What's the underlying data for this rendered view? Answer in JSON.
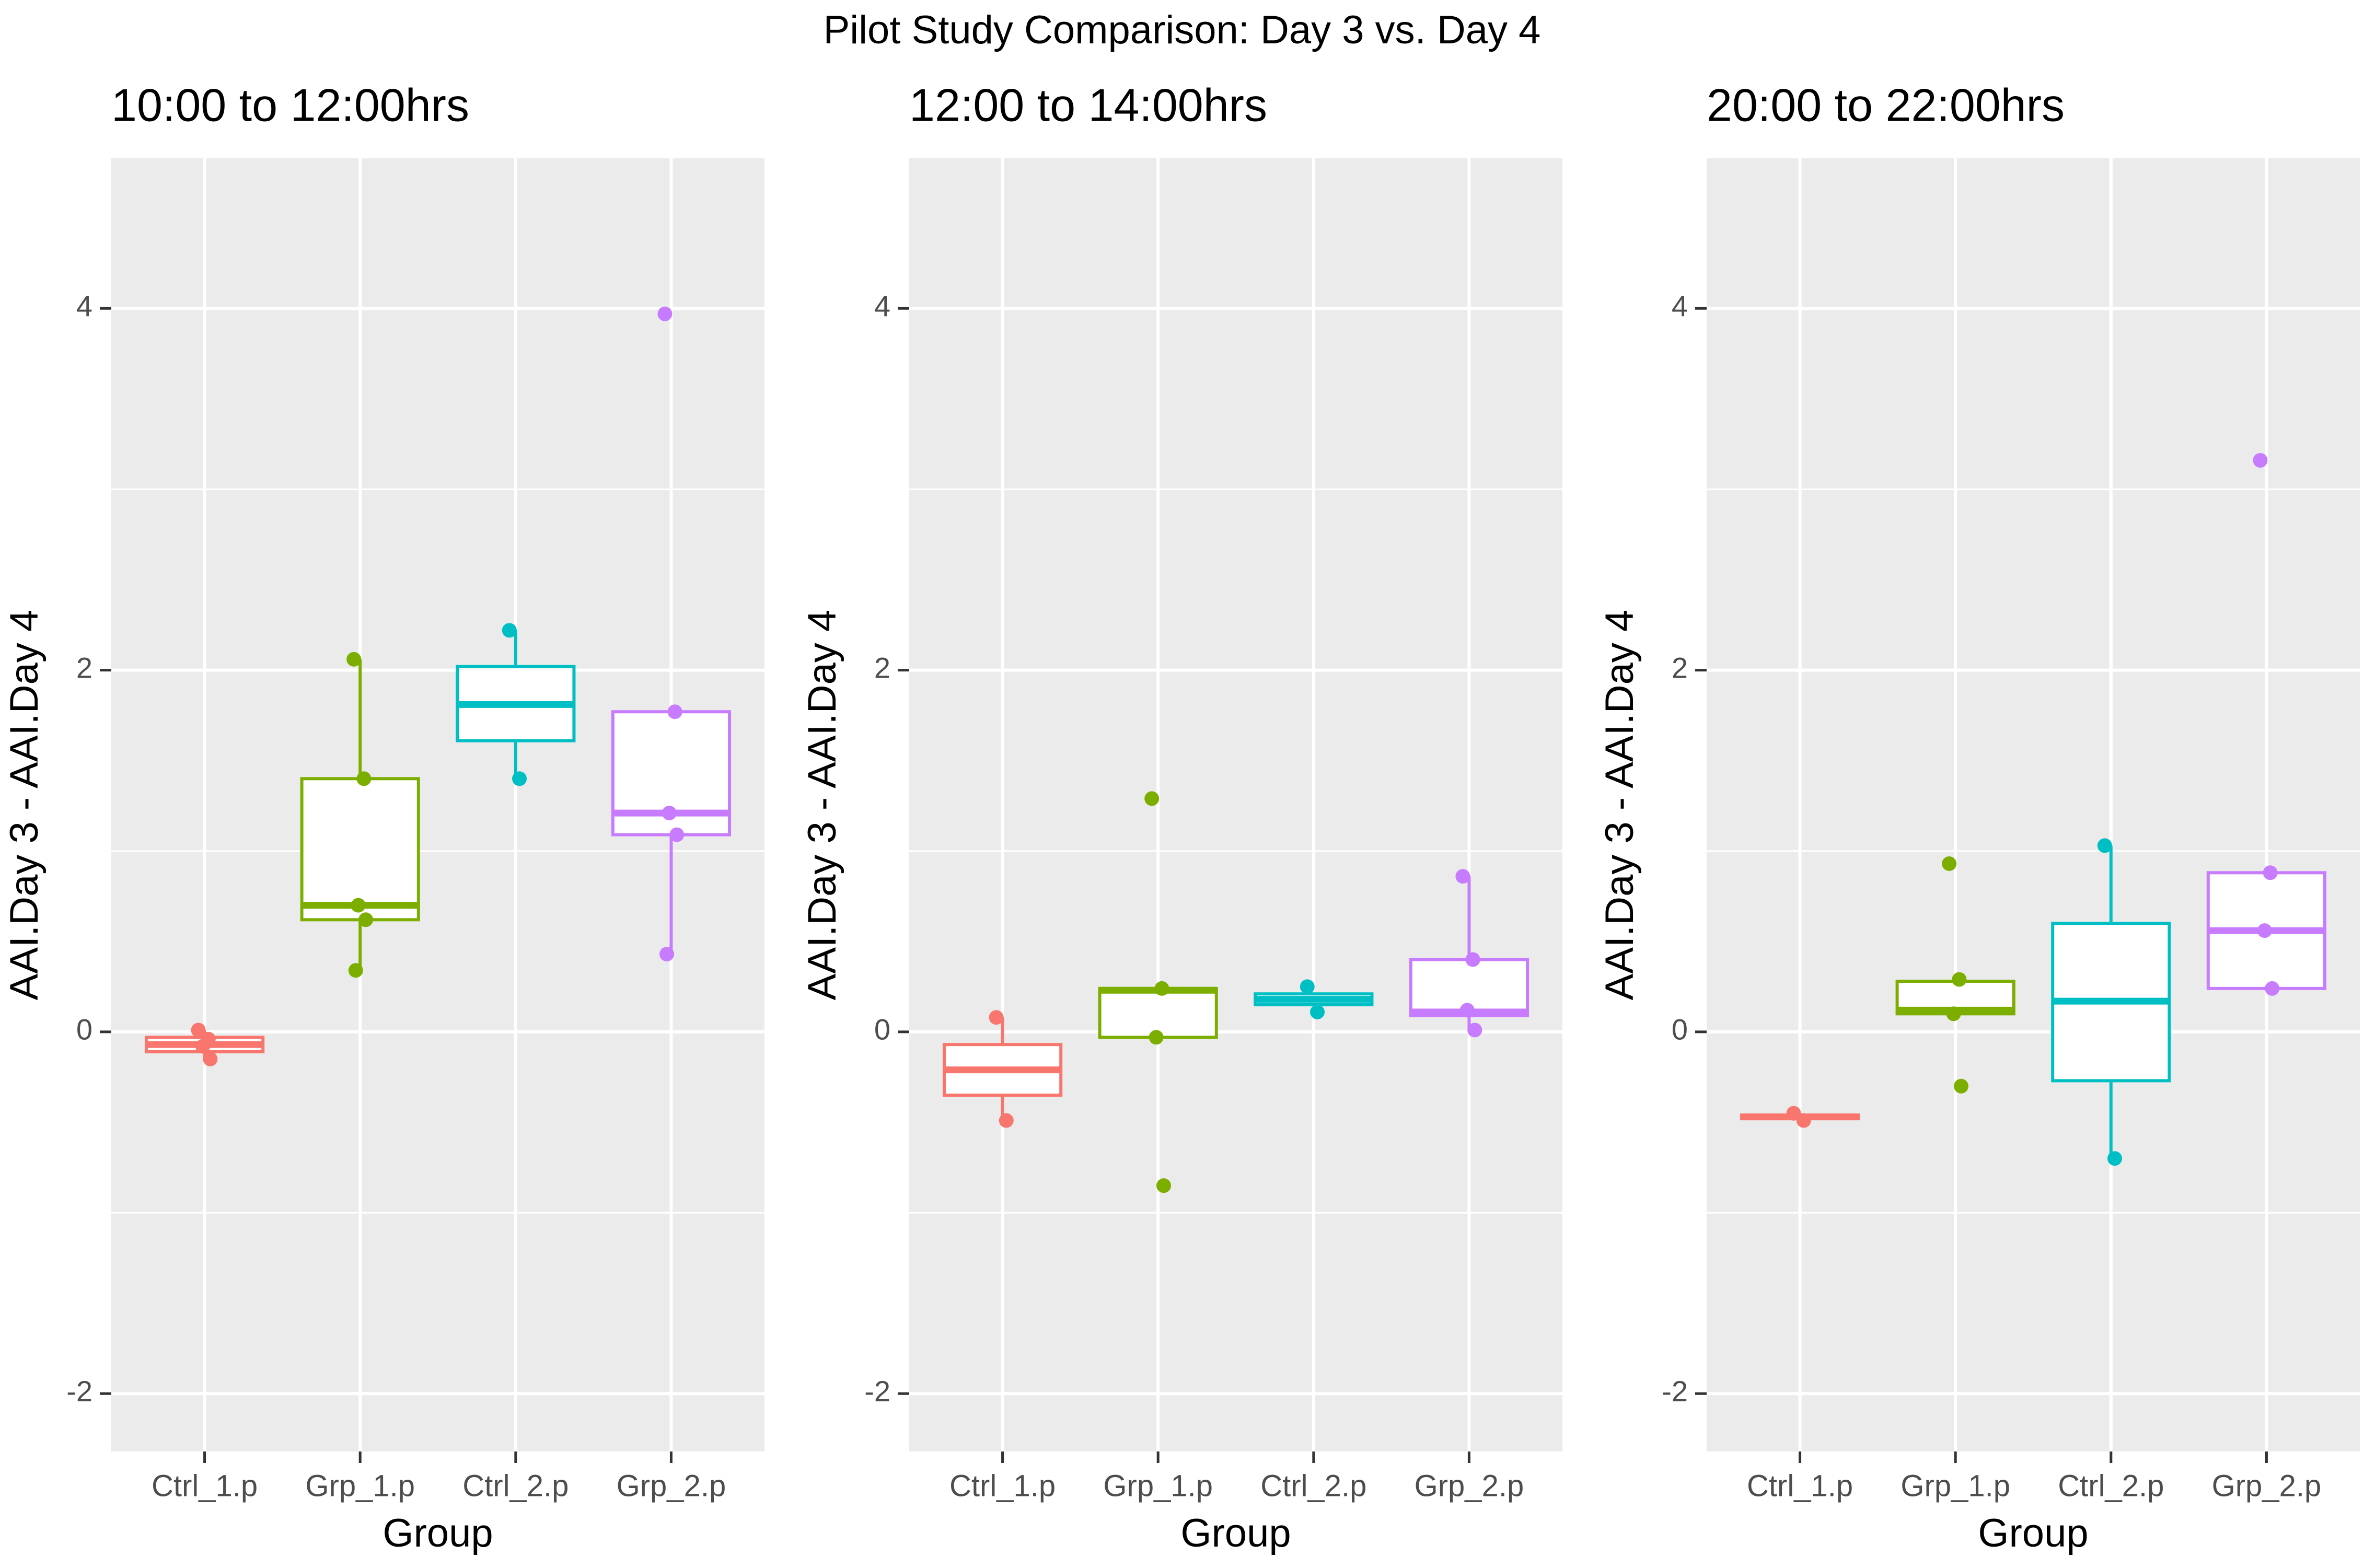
{
  "title": "Pilot Study Comparison: Day 3 vs. Day 4",
  "chart_data": [
    {
      "type": "box",
      "title": "10:00 to 12:00hrs",
      "xlabel": "Group",
      "ylabel": "AAI.Day 3 - AAI.Day 4",
      "categories": [
        "Ctrl_1.p",
        "Grp_1.p",
        "Ctrl_2.p",
        "Grp_2.p"
      ],
      "ylim": [
        -2.32,
        4.83
      ],
      "yticks": [
        -2,
        0,
        2,
        4
      ],
      "minor_yticks": [
        -1,
        1,
        3
      ],
      "grid": true,
      "series": [
        {
          "color": "#F8766D",
          "min": -0.15,
          "q1": -0.11,
          "median": -0.07,
          "q3": -0.03,
          "max": 0.01,
          "points": [
            0.01,
            -0.04,
            -0.08,
            -0.15
          ]
        },
        {
          "color": "#7CAE00",
          "min": 0.34,
          "q1": 0.62,
          "median": 0.7,
          "q3": 1.4,
          "max": 2.06,
          "points": [
            2.06,
            1.4,
            0.7,
            0.62,
            0.34
          ]
        },
        {
          "color": "#00BFC4",
          "min": 1.4,
          "q1": 1.61,
          "median": 1.81,
          "q3": 2.02,
          "max": 2.22,
          "points": [
            2.22,
            1.4
          ]
        },
        {
          "color": "#C77CFF",
          "min": 0.43,
          "q1": 1.09,
          "median": 1.21,
          "q3": 1.77,
          "max": 1.77,
          "points": [
            3.97,
            1.77,
            1.21,
            1.09,
            0.43
          ]
        }
      ]
    },
    {
      "type": "box",
      "title": "12:00 to 14:00hrs",
      "xlabel": "Group",
      "ylabel": "AAI.Day 3 - AAI.Day 4",
      "categories": [
        "Ctrl_1.p",
        "Grp_1.p",
        "Ctrl_2.p",
        "Grp_2.p"
      ],
      "ylim": [
        -2.32,
        4.83
      ],
      "yticks": [
        -2,
        0,
        2,
        4
      ],
      "minor_yticks": [
        -1,
        1,
        3
      ],
      "grid": true,
      "series": [
        {
          "color": "#F8766D",
          "min": -0.49,
          "q1": -0.35,
          "median": -0.21,
          "q3": -0.07,
          "max": 0.08,
          "points": [
            0.08,
            -0.49
          ]
        },
        {
          "color": "#7CAE00",
          "min": -0.03,
          "q1": -0.03,
          "median": 0.23,
          "q3": 0.24,
          "max": 0.24,
          "points": [
            1.29,
            0.24,
            -0.03,
            -0.85
          ]
        },
        {
          "color": "#00BFC4",
          "min": 0.15,
          "q1": 0.15,
          "median": 0.18,
          "q3": 0.21,
          "max": 0.21,
          "points": [
            0.25,
            0.11
          ]
        },
        {
          "color": "#C77CFF",
          "min": 0.01,
          "q1": 0.09,
          "median": 0.11,
          "q3": 0.4,
          "max": 0.86,
          "points": [
            0.86,
            0.4,
            0.12,
            0.01
          ]
        }
      ]
    },
    {
      "type": "box",
      "title": "20:00 to 22:00hrs",
      "xlabel": "Group",
      "ylabel": "AAI.Day 3 - AAI.Day 4",
      "categories": [
        "Ctrl_1.p",
        "Grp_1.p",
        "Ctrl_2.p",
        "Grp_2.p"
      ],
      "ylim": [
        -2.32,
        4.83
      ],
      "yticks": [
        -2,
        0,
        2,
        4
      ],
      "minor_yticks": [
        -1,
        1,
        3
      ],
      "grid": true,
      "series": [
        {
          "color": "#F8766D",
          "min": -0.49,
          "q1": -0.48,
          "median": -0.47,
          "q3": -0.46,
          "max": -0.45,
          "points": [
            -0.45,
            -0.49
          ]
        },
        {
          "color": "#7CAE00",
          "min": 0.1,
          "q1": 0.1,
          "median": 0.12,
          "q3": 0.28,
          "max": 0.29,
          "points": [
            0.93,
            0.29,
            0.1,
            -0.3
          ]
        },
        {
          "color": "#00BFC4",
          "min": -0.7,
          "q1": -0.27,
          "median": 0.17,
          "q3": 0.6,
          "max": 1.03,
          "points": [
            1.03,
            -0.7
          ]
        },
        {
          "color": "#C77CFF",
          "min": 0.24,
          "q1": 0.24,
          "median": 0.56,
          "q3": 0.88,
          "max": 0.88,
          "points": [
            3.16,
            0.88,
            0.56,
            0.24
          ]
        }
      ]
    }
  ]
}
